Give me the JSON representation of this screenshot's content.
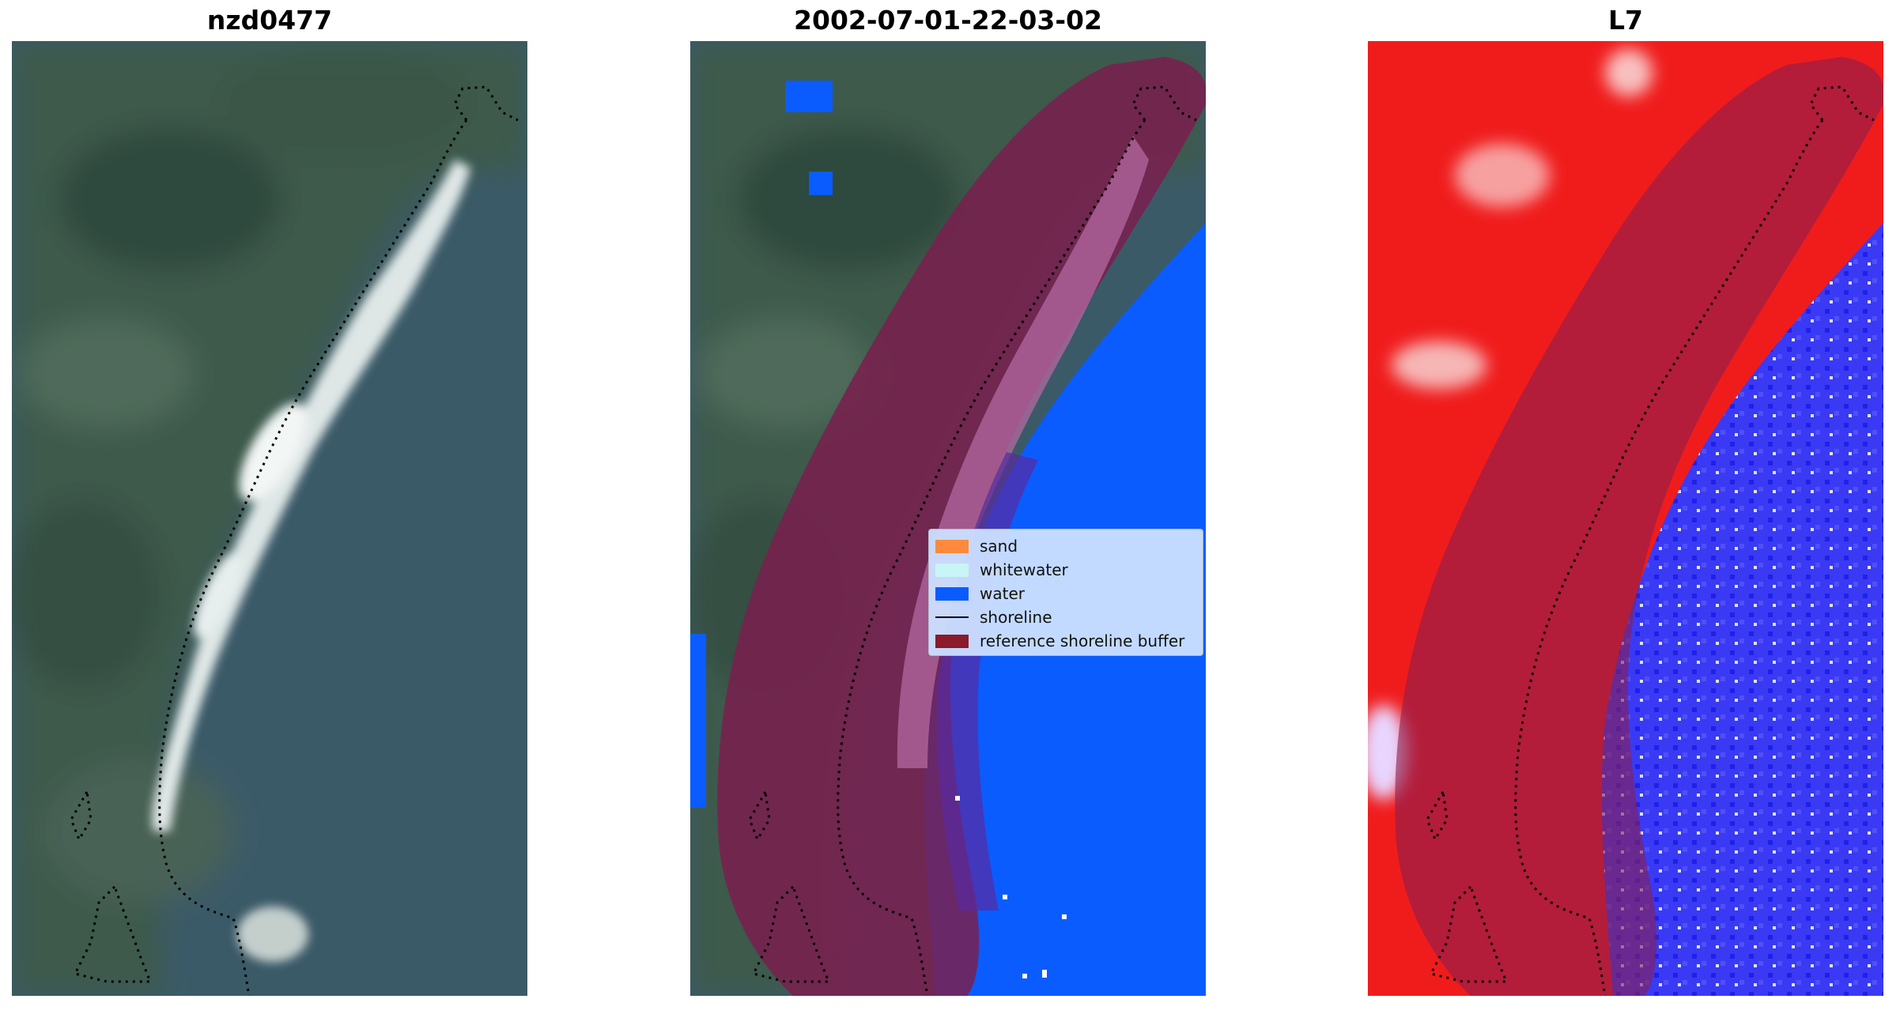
{
  "titles": {
    "panel1": "nzd0477",
    "panel2": "2002-07-01-22-03-02",
    "panel3": "L7"
  },
  "legend": {
    "items": [
      {
        "label": "sand",
        "color": "#ff8a3d",
        "kind": "patch"
      },
      {
        "label": "whitewater",
        "color": "#c8f5f5",
        "kind": "patch"
      },
      {
        "label": "water",
        "color": "#0a5cff",
        "kind": "patch"
      },
      {
        "label": "shoreline",
        "color": "#000000",
        "kind": "line"
      },
      {
        "label": "reference shoreline buffer",
        "color": "#8b1a2a",
        "kind": "patch"
      }
    ]
  },
  "colors": {
    "land": "#3f5a4c",
    "sea": "#3b5a6a",
    "surf": "#e8eeee",
    "water_class": "#0a5cff",
    "buffer": "#7a1e4e",
    "index_land": "#f01c1c",
    "index_water": "#3a3af5"
  }
}
